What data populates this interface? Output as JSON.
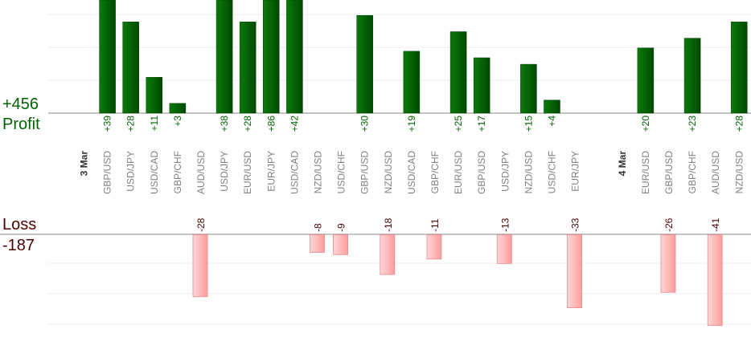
{
  "summary": {
    "profit_total": "+456",
    "profit_label": "Profit",
    "loss_label": "Loss",
    "loss_total": "-187"
  },
  "colors": {
    "profit_bar": "#006400",
    "profit_text": "#006400",
    "loss_bar": "#ffb0b0",
    "loss_text": "#4a0000",
    "date_text": "#333333",
    "pair_text": "#808080"
  },
  "chart_data": {
    "type": "bar",
    "categories": [
      {
        "label": "3 Mar",
        "kind": "date"
      },
      {
        "label": "GBP/USD",
        "value": 39,
        "value_label": "+39"
      },
      {
        "label": "USD/JPY",
        "value": 28,
        "value_label": "+28"
      },
      {
        "label": "USD/CAD",
        "value": 11,
        "value_label": "+11"
      },
      {
        "label": "GBP/CHF",
        "value": 3,
        "value_label": "+3"
      },
      {
        "label": "AUD/USD",
        "value": -28,
        "value_label": "-28"
      },
      {
        "label": "USD/JPY",
        "value": 38,
        "value_label": "+38"
      },
      {
        "label": "EUR/USD",
        "value": 28,
        "value_label": "+28"
      },
      {
        "label": "EUR/JPY",
        "value": 86,
        "value_label": "+86"
      },
      {
        "label": "USD/CAD",
        "value": 42,
        "value_label": "+42"
      },
      {
        "label": "NZD/USD",
        "value": -8,
        "value_label": "-8"
      },
      {
        "label": "USD/CHF",
        "value": -9,
        "value_label": "-9"
      },
      {
        "label": "GBP/USD",
        "value": 30,
        "value_label": "+30"
      },
      {
        "label": "NZD/USD",
        "value": -18,
        "value_label": "-18"
      },
      {
        "label": "USD/CAD",
        "value": 19,
        "value_label": "+19"
      },
      {
        "label": "GBP/CHF",
        "value": -11,
        "value_label": "-11"
      },
      {
        "label": "EUR/USD",
        "value": 25,
        "value_label": "+25"
      },
      {
        "label": "GBP/USD",
        "value": 17,
        "value_label": "+17"
      },
      {
        "label": "USD/JPY",
        "value": -13,
        "value_label": "-13"
      },
      {
        "label": "NZD/USD",
        "value": 15,
        "value_label": "+15"
      },
      {
        "label": "USD/CHF",
        "value": 4,
        "value_label": "+4"
      },
      {
        "label": "EUR/JPY",
        "value": -33,
        "value_label": "-33"
      },
      {
        "label": "",
        "kind": "gap"
      },
      {
        "label": "4 Mar",
        "kind": "date"
      },
      {
        "label": "EUR/USD",
        "value": 20,
        "value_label": "+20"
      },
      {
        "label": "GBP/USD",
        "value": -26,
        "value_label": "-26"
      },
      {
        "label": "GBP/CHF",
        "value": 23,
        "value_label": "+23"
      },
      {
        "label": "AUD/USD",
        "value": -41,
        "value_label": "-41"
      },
      {
        "label": "NZD/USD",
        "value": 28,
        "value_label": "+28"
      }
    ],
    "profit_axis_ylim": [
      0,
      35
    ],
    "loss_axis_ylim": [
      -30,
      0
    ],
    "grid": true,
    "legend": "none"
  }
}
